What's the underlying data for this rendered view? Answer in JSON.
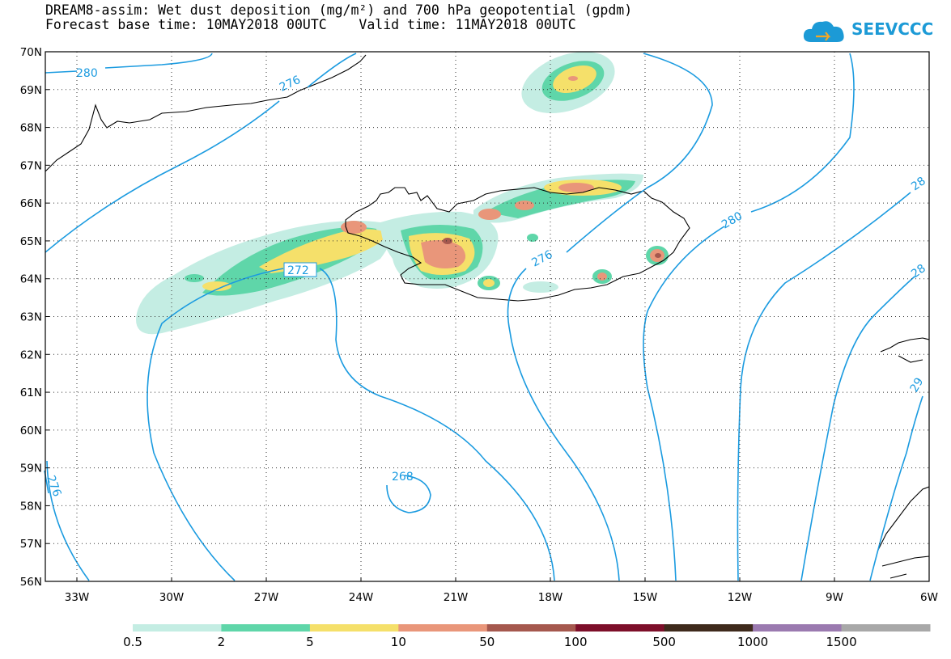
{
  "header": {
    "title_line1": "DREAM8-assim: Wet dust deposition (mg/m²) and 700 hPa geopotential (gpdm)",
    "title_line2": "Forecast base time: 10MAY2018 00UTC    Valid time: 11MAY2018 00UTC"
  },
  "logo": {
    "text": "SEEVCCC",
    "icon": "cloud-icon",
    "color": "#1c9ad6"
  },
  "map": {
    "lat_ticks": [
      "70N",
      "69N",
      "68N",
      "67N",
      "66N",
      "65N",
      "64N",
      "63N",
      "62N",
      "61N",
      "60N",
      "59N",
      "58N",
      "57N",
      "56N"
    ],
    "lon_ticks": [
      "33W",
      "30W",
      "27W",
      "24W",
      "21W",
      "18W",
      "15W",
      "12W",
      "9W",
      "6W"
    ],
    "contour_labels": [
      "280",
      "276",
      "272",
      "276",
      "280",
      "268",
      "276",
      "28",
      "28",
      "29"
    ],
    "contour_color": "#1b9be0"
  },
  "colorbar": {
    "labels": [
      "0.5",
      "2",
      "5",
      "10",
      "50",
      "100",
      "500",
      "1000",
      "1500"
    ],
    "colors": [
      "#c4ede3",
      "#5fd6a9",
      "#f5e06a",
      "#e9967a",
      "#a5584e",
      "#7d0f2a",
      "#3e2a1c",
      "#9b7ab0",
      "#a8a8a8"
    ]
  }
}
